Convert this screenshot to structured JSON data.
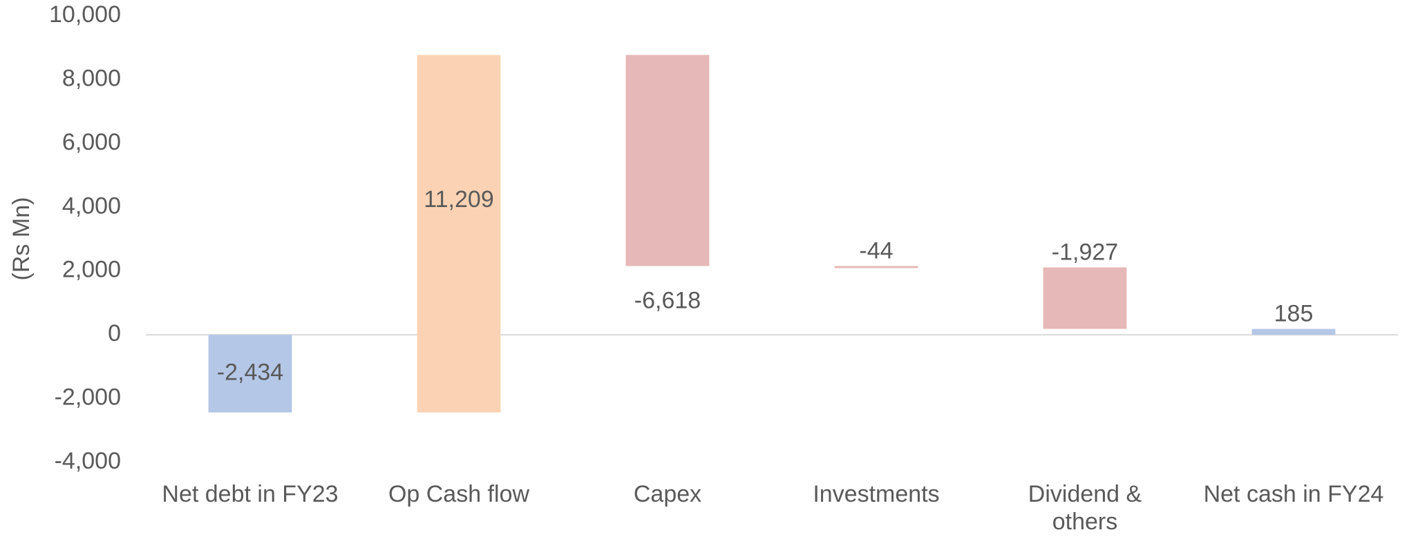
{
  "chart_data": {
    "type": "waterfall",
    "y_axis_label": "(Rs Mn)",
    "categories": [
      "Net debt in FY23",
      "Op Cash flow",
      "Capex",
      "Investments",
      "Dividend & others",
      "Net cash in FY24"
    ],
    "values": [
      -2434,
      11209,
      -6618,
      -44,
      -1927,
      185
    ],
    "value_labels": [
      "-2,434",
      "11,209",
      "-6,618",
      "-44",
      "-1,927",
      "185"
    ],
    "totals": [
      true,
      false,
      false,
      false,
      false,
      true
    ],
    "colors": {
      "total": "#b4c7e7",
      "increase": "#fbd3b4",
      "decrease": "#e6b8b7"
    },
    "ylim": [
      -4000,
      10000
    ],
    "yticks": [
      {
        "value": -4000,
        "label": "-4,000"
      },
      {
        "value": -2000,
        "label": "-2,000"
      },
      0,
      {
        "value": 2000,
        "label": "2,000"
      },
      {
        "value": 4000,
        "label": "4,000"
      },
      {
        "value": 6000,
        "label": "6,000"
      },
      {
        "value": 8000,
        "label": "8,000"
      },
      {
        "value": 10000,
        "label": "10,000"
      }
    ]
  }
}
